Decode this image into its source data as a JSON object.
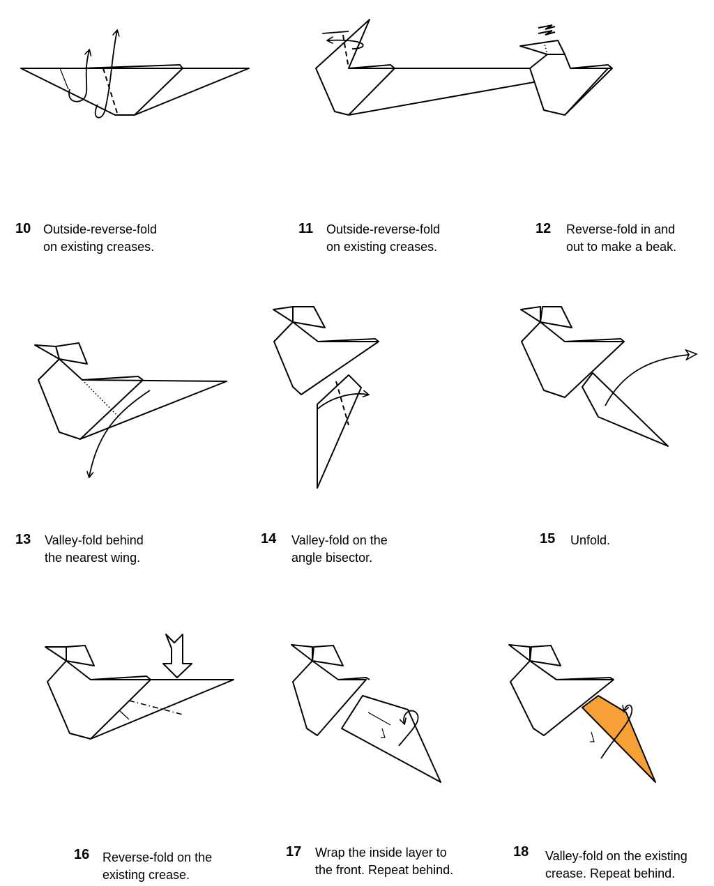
{
  "steps": [
    {
      "number": "10",
      "lines": [
        "Outside-reverse-fold",
        "on existing creases."
      ]
    },
    {
      "number": "11",
      "lines": [
        "Outside-reverse-fold",
        "on existing creases."
      ]
    },
    {
      "number": "12",
      "lines": [
        "Reverse-fold in and",
        "out to make a beak."
      ]
    },
    {
      "number": "13",
      "lines": [
        "Valley-fold behind",
        "the nearest wing."
      ]
    },
    {
      "number": "14",
      "lines": [
        "Valley-fold on the",
        "angle bisector."
      ]
    },
    {
      "number": "15",
      "lines": [
        "Unfold."
      ]
    },
    {
      "number": "16",
      "lines": [
        "Reverse-fold on the",
        "existing crease."
      ]
    },
    {
      "number": "17",
      "lines": [
        "Wrap the inside layer to",
        "the front. Repeat behind."
      ]
    },
    {
      "number": "18",
      "lines": [
        "Valley-fold on the existing",
        "crease. Repeat behind."
      ]
    }
  ],
  "colors": {
    "highlight_fill": "#f7a035",
    "line": "#000000",
    "background": "#ffffff"
  }
}
